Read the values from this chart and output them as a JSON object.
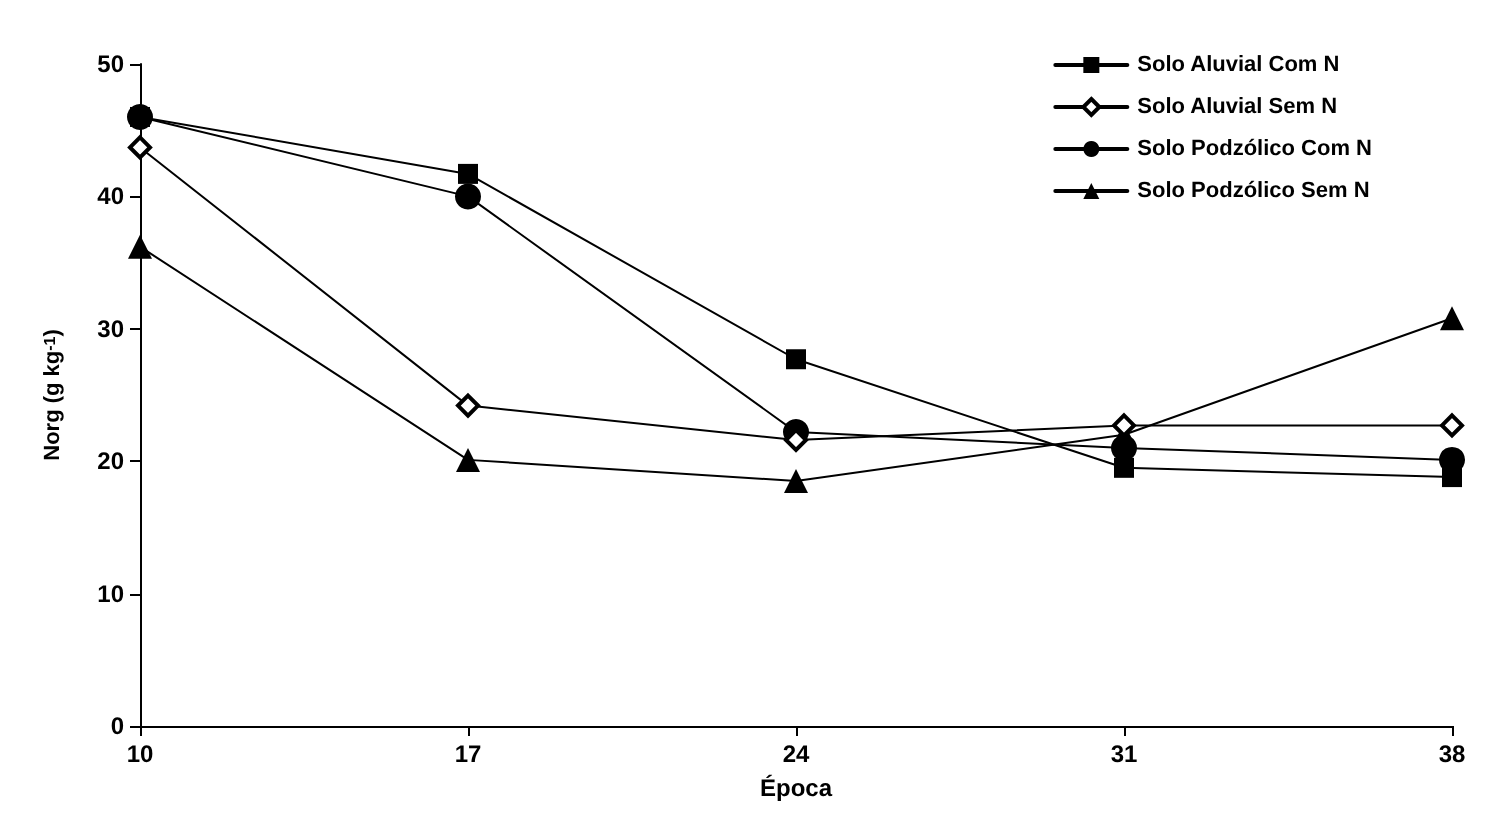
{
  "chart_data": {
    "type": "line",
    "xlabel": "Época",
    "ylabel": "Norg (g kg$^{-1}$)",
    "categories": [
      "10",
      "17",
      "24",
      "31",
      "38"
    ],
    "series": [
      {
        "name": "Solo Aluvial Com N",
        "color": "#000000",
        "marker": "square",
        "values": [
          46,
          41.7,
          27.7,
          19.5,
          18.8
        ]
      },
      {
        "name": "Solo Aluvial Sem N",
        "color": "#000000",
        "marker": "diamond",
        "values": [
          43.7,
          24.2,
          21.6,
          22.7,
          22.7
        ]
      },
      {
        "name": "Solo Podzólico Com N",
        "color": "#000000",
        "marker": "circle",
        "values": [
          46,
          40,
          22.2,
          21,
          20.1
        ]
      },
      {
        "name": "Solo Podzólico Sem N",
        "color": "#000000",
        "marker": "triangle",
        "values": [
          36.2,
          20.1,
          18.5,
          22,
          30.8
        ]
      }
    ],
    "ylim": [
      0,
      50
    ],
    "yticks": [
      0,
      10,
      20,
      30,
      40,
      50
    ],
    "grid": false,
    "legend": "top right",
    "line_style": "solid"
  }
}
